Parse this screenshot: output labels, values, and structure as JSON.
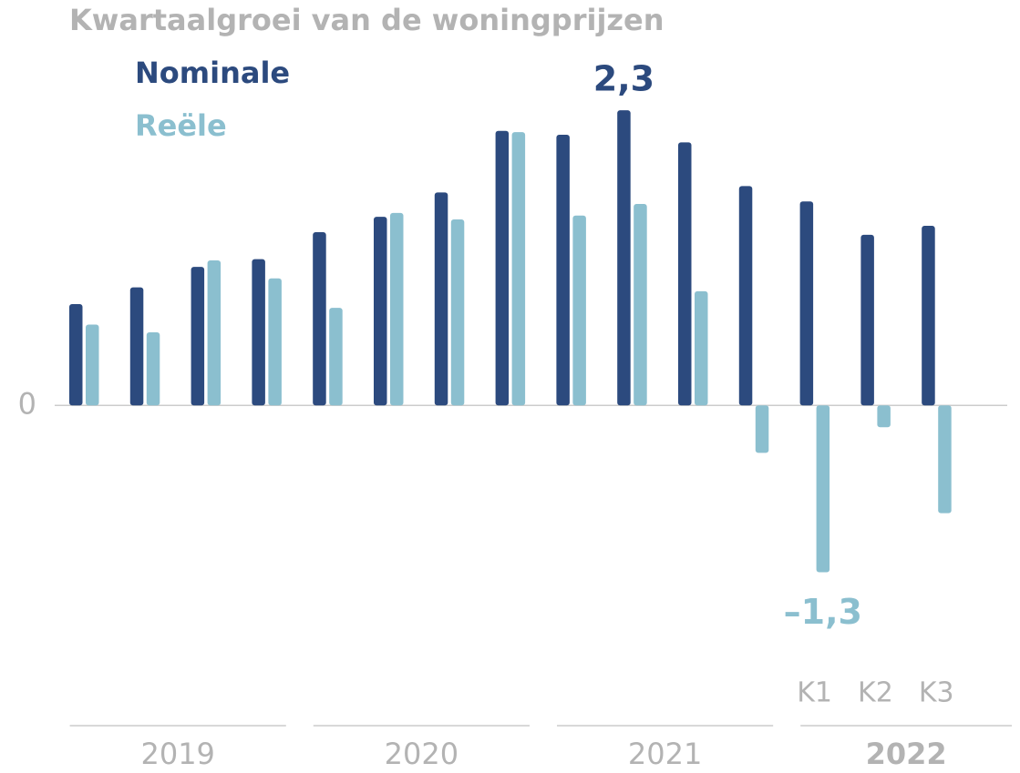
{
  "chart_data": {
    "type": "bar",
    "title": "Kwartaalgroei van de woningprijzen",
    "categories": [
      null,
      null,
      null,
      null,
      null,
      null,
      null,
      null,
      null,
      null,
      null,
      null,
      "K1",
      "K2",
      "K3"
    ],
    "groups": [
      "2019",
      "2020",
      "2021",
      "2022"
    ],
    "series": [
      {
        "name": "Nominale",
        "color": "#2c4a7e",
        "values": [
          0.79,
          0.92,
          1.08,
          1.14,
          1.35,
          1.47,
          1.66,
          2.14,
          2.11,
          2.3,
          2.05,
          1.71,
          1.59,
          1.33,
          1.4
        ],
        "value_labels": [
          null,
          null,
          null,
          null,
          null,
          null,
          null,
          null,
          null,
          "2,3",
          null,
          null,
          null,
          null,
          null
        ]
      },
      {
        "name": "Reële",
        "color": "#8bbfcf",
        "values": [
          0.63,
          0.57,
          1.13,
          0.99,
          0.76,
          1.5,
          1.45,
          2.13,
          1.48,
          1.57,
          0.89,
          -0.37,
          -1.3,
          -0.17,
          -0.84
        ],
        "value_labels": [
          null,
          null,
          null,
          null,
          null,
          null,
          null,
          null,
          null,
          null,
          null,
          null,
          "–1,3",
          null,
          null
        ]
      }
    ],
    "ylim": [
      -1.9,
      2.5
    ],
    "yticks": [
      0
    ]
  }
}
